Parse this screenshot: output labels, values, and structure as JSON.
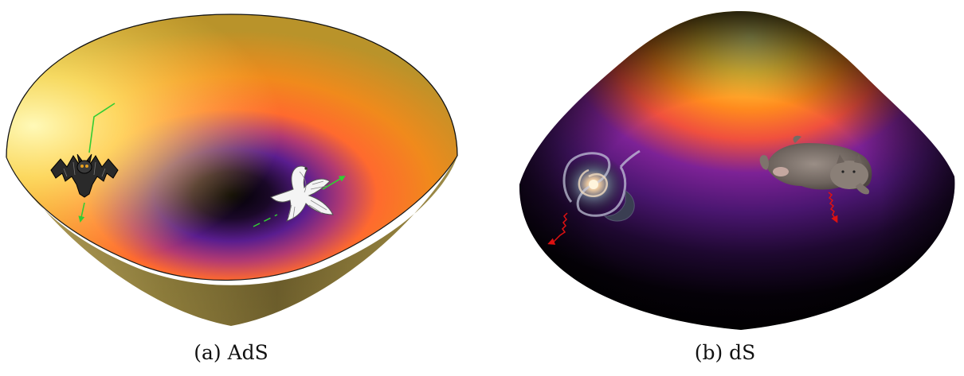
{
  "panels": [
    {
      "caption": "(a) AdS",
      "surface_shape": "bowl",
      "figures": [
        "bat",
        "white-bird"
      ],
      "trajectory_color": "#33cc33"
    },
    {
      "caption": "(b) dS",
      "surface_shape": "dome",
      "figures": [
        "spiral-galaxy",
        "cat"
      ],
      "wave_color": "#dd1111"
    }
  ],
  "colors": {
    "bright_yellow": "#fff27a",
    "orange": "#ff8a1e",
    "coral": "#ff5a3c",
    "purple": "#6d1fa8",
    "dark_purple": "#2a0b3e",
    "black": "#000000",
    "bowl_outer": "#8a7a35"
  }
}
